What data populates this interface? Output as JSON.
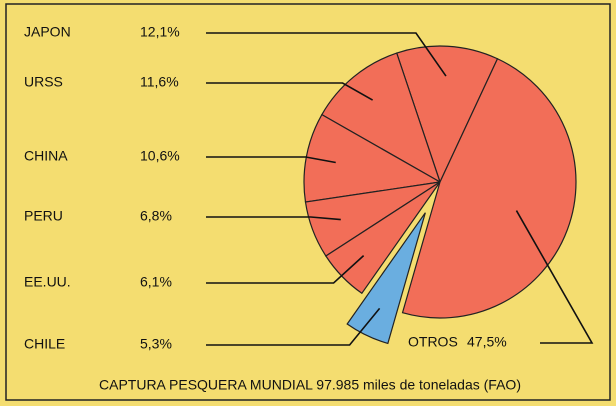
{
  "chart_data": {
    "type": "pie",
    "title": "CAPTURA PESQUERA MUNDIAL 97.985 miles de toneladas (FAO)",
    "categories": [
      "JAPON",
      "URSS",
      "CHINA",
      "PERU",
      "EE.UU.",
      "CHILE",
      "OTROS"
    ],
    "values": [
      12.1,
      11.6,
      10.6,
      6.8,
      6.1,
      5.3,
      47.5
    ],
    "value_labels": [
      "12,1%",
      "11,6%",
      "10,6%",
      "6,8%",
      "6,1%",
      "5,3%",
      "47,5%"
    ],
    "colors": [
      "#f26e58",
      "#f26e58",
      "#f26e58",
      "#f26e58",
      "#f26e58",
      "#6aaee0",
      "#f26e58"
    ]
  }
}
